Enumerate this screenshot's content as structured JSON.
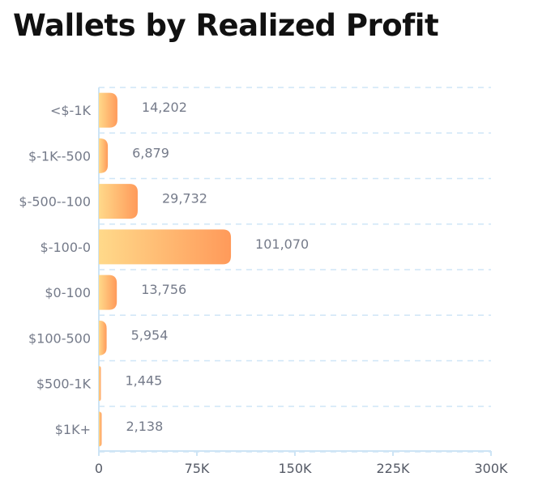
{
  "chart_data": {
    "type": "bar",
    "orientation": "horizontal",
    "title": "Wallets by Realized Profit",
    "categories": [
      "<$-1K",
      "$-1K--500",
      "$-500--100",
      "$-100-0",
      "$0-100",
      "$100-500",
      "$500-1K",
      "$1K+"
    ],
    "values": [
      14202,
      6879,
      29732,
      101070,
      13756,
      5954,
      1445,
      2138
    ],
    "value_labels": [
      "14,202",
      "6,879",
      "29,732",
      "101,070",
      "13,756",
      "5,954",
      "1,445",
      "2,138"
    ],
    "xlim": [
      0,
      300000
    ],
    "xticks": [
      0,
      75000,
      150000,
      225000,
      300000
    ],
    "xtick_labels": [
      "0",
      "75K",
      "150K",
      "225K",
      "300K"
    ],
    "xlabel": "",
    "ylabel": "",
    "grid": true,
    "legend": "none",
    "colors": {
      "bar_start": "#ffd98a",
      "bar_end": "#ff9a5a",
      "grid": "#cfe6f7",
      "axis": "#cde4f5"
    }
  }
}
